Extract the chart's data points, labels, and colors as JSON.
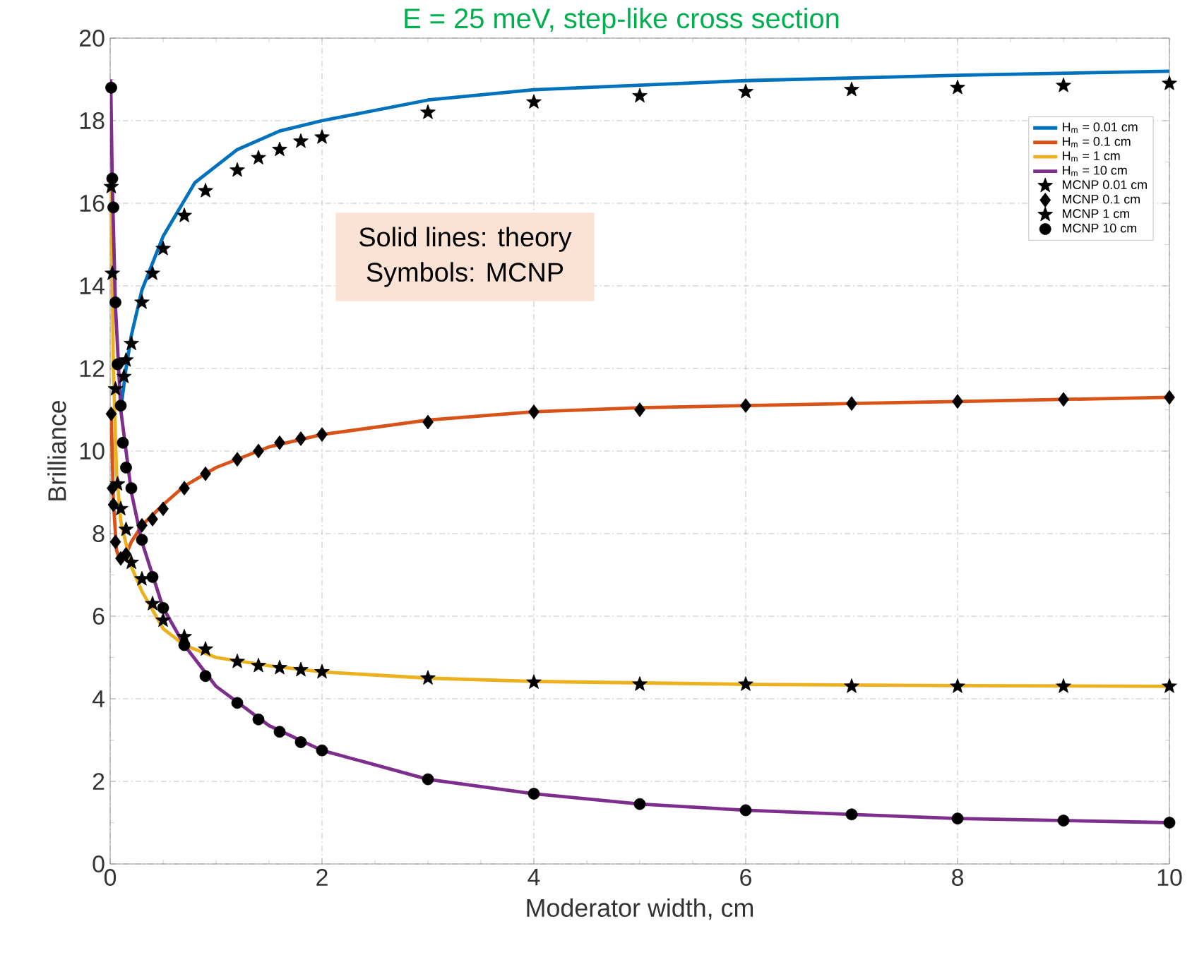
{
  "chart_data": {
    "type": "line",
    "title": "E = 25 meV, step-like cross section",
    "xlabel": "Moderator width, cm",
    "ylabel": "Brilliance",
    "annotations": [
      "Solid lines:   theory",
      "Symbols:  MCNP"
    ],
    "xlim": [
      0,
      10
    ],
    "ylim": [
      0,
      20
    ],
    "xticks": [
      0,
      2,
      4,
      6,
      8,
      10
    ],
    "yticks": [
      0,
      2,
      4,
      6,
      8,
      10,
      12,
      14,
      16,
      18,
      20
    ],
    "grid": true,
    "legend": "top right",
    "series": [
      {
        "name": "H$_{m}$ = 0.01 cm",
        "color": "#0072bd",
        "x": [
          0.1,
          0.15,
          0.2,
          0.3,
          0.5,
          0.8,
          1.2,
          1.6,
          2,
          3,
          4,
          6,
          8,
          10
        ],
        "values": [
          11,
          12,
          12.8,
          13.9,
          15.2,
          16.5,
          17.3,
          17.75,
          18.0,
          18.5,
          18.75,
          18.97,
          19.1,
          19.2
        ]
      },
      {
        "name": "H$_{m}$ = 0.1 cm",
        "color": "#d95319",
        "x": [
          0.01,
          0.03,
          0.06,
          0.1,
          0.15,
          0.2,
          0.3,
          0.5,
          0.7,
          1,
          1.5,
          2,
          3,
          4,
          5,
          6,
          8,
          10
        ],
        "values": [
          10.9,
          8.8,
          7.6,
          7.3,
          7.5,
          7.8,
          8.2,
          8.7,
          9.15,
          9.6,
          10.1,
          10.4,
          10.75,
          10.95,
          11.05,
          11.1,
          11.2,
          11.3
        ]
      },
      {
        "name": "H$_{m}$ = 1 cm",
        "color": "#edb120",
        "x": [
          0.01,
          0.03,
          0.06,
          0.1,
          0.2,
          0.3,
          0.5,
          0.7,
          1,
          1.5,
          2,
          3,
          4,
          6,
          8,
          10
        ],
        "values": [
          16.5,
          12,
          9.5,
          8.3,
          7.2,
          6.6,
          5.7,
          5.3,
          5.0,
          4.8,
          4.65,
          4.5,
          4.42,
          4.35,
          4.32,
          4.3
        ]
      },
      {
        "name": "H$_{m}$ = 10 cm",
        "color": "#7e2f8e",
        "x": [
          0.005,
          0.02,
          0.05,
          0.1,
          0.2,
          0.3,
          0.5,
          0.7,
          1,
          1.5,
          2,
          3,
          4,
          5,
          6,
          7,
          8,
          10
        ],
        "values": [
          19,
          16.5,
          13.5,
          11,
          9,
          7.8,
          6.2,
          5.3,
          4.3,
          3.35,
          2.75,
          2.05,
          1.7,
          1.45,
          1.3,
          1.2,
          1.1,
          1.0
        ]
      },
      {
        "name": "MCNP 0.01 cm",
        "type": "scatter",
        "marker": "star",
        "color": "#000000",
        "x": [
          0.13,
          0.15,
          0.2,
          0.3,
          0.4,
          0.5,
          0.7,
          0.9,
          1.2,
          1.4,
          1.6,
          1.8,
          2,
          3,
          4,
          5,
          6,
          7,
          8,
          9,
          10
        ],
        "values": [
          11.8,
          12.2,
          12.6,
          13.6,
          14.3,
          14.9,
          15.7,
          16.3,
          16.8,
          17.1,
          17.3,
          17.5,
          17.6,
          18.2,
          18.45,
          18.6,
          18.7,
          18.75,
          18.8,
          18.85,
          18.9
        ]
      },
      {
        "name": "MCNP 0.1 cm",
        "type": "scatter",
        "marker": "diamond",
        "color": "#000000",
        "x": [
          0.01,
          0.02,
          0.03,
          0.05,
          0.1,
          0.15,
          0.3,
          0.4,
          0.5,
          0.7,
          0.9,
          1.2,
          1.4,
          1.6,
          1.8,
          2,
          3,
          4,
          5,
          6,
          7,
          8,
          9,
          10
        ],
        "values": [
          10.9,
          9.1,
          8.7,
          7.8,
          7.4,
          7.5,
          8.2,
          8.35,
          8.6,
          9.1,
          9.45,
          9.8,
          10.0,
          10.2,
          10.3,
          10.4,
          10.7,
          10.95,
          11.0,
          11.1,
          11.15,
          11.2,
          11.25,
          11.3
        ]
      },
      {
        "name": "MCNP 1 cm",
        "type": "scatter",
        "marker": "star",
        "color": "#000000",
        "x": [
          0.01,
          0.02,
          0.05,
          0.07,
          0.1,
          0.15,
          0.2,
          0.3,
          0.4,
          0.5,
          0.7,
          0.9,
          1.2,
          1.4,
          1.6,
          1.8,
          2,
          3,
          4,
          5,
          6,
          7,
          8,
          9,
          10
        ],
        "values": [
          16.4,
          14.3,
          11.5,
          9.2,
          8.6,
          8.1,
          7.3,
          6.9,
          6.3,
          5.9,
          5.5,
          5.2,
          4.9,
          4.8,
          4.75,
          4.7,
          4.65,
          4.5,
          4.4,
          4.35,
          4.35,
          4.3,
          4.3,
          4.3,
          4.3
        ]
      },
      {
        "name": "MCNP 10 cm",
        "type": "scatter",
        "marker": "circle",
        "color": "#000000",
        "x": [
          0.01,
          0.02,
          0.03,
          0.05,
          0.07,
          0.1,
          0.12,
          0.15,
          0.2,
          0.3,
          0.4,
          0.5,
          0.7,
          0.9,
          1.2,
          1.4,
          1.6,
          1.8,
          2,
          3,
          4,
          5,
          6,
          7,
          8,
          9,
          10
        ],
        "values": [
          18.8,
          16.6,
          15.9,
          13.6,
          12.1,
          11.1,
          10.2,
          9.6,
          9.1,
          7.85,
          6.95,
          6.2,
          5.3,
          4.55,
          3.9,
          3.5,
          3.2,
          2.95,
          2.75,
          2.05,
          1.7,
          1.45,
          1.3,
          1.2,
          1.1,
          1.05,
          1.0
        ]
      }
    ]
  }
}
